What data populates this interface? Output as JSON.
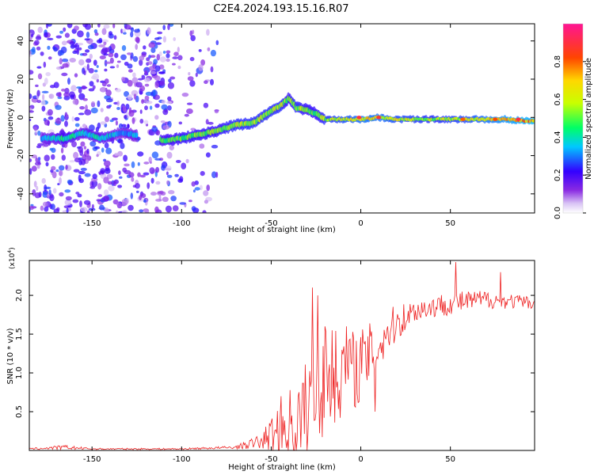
{
  "figure_title": "C2E4.2024.193.15.16.R07",
  "chart_data": [
    {
      "type": "heatmap",
      "name": "spectrogram",
      "title": "C2E4.2024.193.15.16.R07",
      "xlabel": "Height of straight line (km)",
      "ylabel": "Frequency (Hz)",
      "xlim": [
        -185,
        97
      ],
      "ylim": [
        -50,
        49
      ],
      "xticks": [
        -150,
        -100,
        -50,
        0,
        50
      ],
      "yticks": [
        -40,
        -20,
        0,
        20,
        40
      ],
      "colorbar": {
        "label": "Normalized spectral amplitude",
        "range": [
          0.0,
          1.0
        ],
        "ticks": [
          0.0,
          0.2,
          0.4,
          0.6,
          0.8
        ],
        "tick_labels": [
          "0.0",
          "0.2",
          "0.4",
          "0.6",
          "0.8"
        ],
        "colormap": [
          "#ffffff",
          "#d9c4f5",
          "#8a2be2",
          "#3300ff",
          "#00c8ff",
          "#00ff66",
          "#c8ff00",
          "#ffd700",
          "#ff4500",
          "#ff1493"
        ]
      },
      "ridge": [
        {
          "x": -173,
          "y": -11,
          "a": 0.35
        },
        {
          "x": -165,
          "y": -11,
          "a": 0.45
        },
        {
          "x": -155,
          "y": -8,
          "a": 0.35
        },
        {
          "x": -145,
          "y": -11,
          "a": 0.4
        },
        {
          "x": -133,
          "y": -8,
          "a": 0.3
        },
        {
          "x": -110,
          "y": -12,
          "a": 0.45
        },
        {
          "x": -100,
          "y": -11,
          "a": 0.5
        },
        {
          "x": -90,
          "y": -9,
          "a": 0.5
        },
        {
          "x": -80,
          "y": -7,
          "a": 0.5
        },
        {
          "x": -70,
          "y": -4,
          "a": 0.55
        },
        {
          "x": -60,
          "y": -3,
          "a": 0.55
        },
        {
          "x": -52,
          "y": 2,
          "a": 0.55
        },
        {
          "x": -45,
          "y": 6,
          "a": 0.55
        },
        {
          "x": -40,
          "y": 10,
          "a": 0.5
        },
        {
          "x": -36,
          "y": 5,
          "a": 0.55
        },
        {
          "x": -30,
          "y": 4,
          "a": 0.5
        },
        {
          "x": -25,
          "y": 2,
          "a": 0.5
        },
        {
          "x": -20,
          "y": -1,
          "a": 0.55
        },
        {
          "x": -10,
          "y": -1,
          "a": 0.6
        },
        {
          "x": 0,
          "y": -1,
          "a": 0.65
        },
        {
          "x": 10,
          "y": 0,
          "a": 0.65
        },
        {
          "x": 20,
          "y": -1,
          "a": 0.6
        },
        {
          "x": 40,
          "y": -1,
          "a": 0.55
        },
        {
          "x": 60,
          "y": -1,
          "a": 0.6
        },
        {
          "x": 80,
          "y": -1,
          "a": 0.7
        },
        {
          "x": 97,
          "y": -2,
          "a": 0.75
        }
      ],
      "hotspots": [
        {
          "x": -1,
          "y": 0,
          "a": 0.9
        },
        {
          "x": 10,
          "y": 0,
          "a": 0.88
        },
        {
          "x": 57,
          "y": -1,
          "a": 0.8
        },
        {
          "x": 75,
          "y": -1,
          "a": 0.82
        },
        {
          "x": 88,
          "y": -1,
          "a": 0.9
        }
      ],
      "noise_band": {
        "x_from": -185,
        "x_to": -80,
        "level": 0.25
      }
    },
    {
      "type": "line",
      "name": "snr",
      "xlabel": "Height of straight line (km)",
      "ylabel": "SNR (10 * v/v)",
      "ylabel_multiplier": "(x10",
      "ylabel_multiplier_exp": "4",
      "ylabel_multiplier_close": ")",
      "xlim": [
        -185,
        97
      ],
      "ylim": [
        0,
        2.45
      ],
      "xticks": [
        -150,
        -100,
        -50,
        0,
        50
      ],
      "yticks": [
        0.5,
        1.0,
        1.5,
        2.0
      ],
      "ytick_labels": [
        "0.5",
        "1.0",
        "1.5",
        "2.0"
      ],
      "color": "#ee2222",
      "envelope": [
        {
          "x": -185,
          "y": 0.02,
          "amp": 0.01
        },
        {
          "x": -165,
          "y": 0.04,
          "amp": 0.03
        },
        {
          "x": -150,
          "y": 0.02,
          "amp": 0.01
        },
        {
          "x": -100,
          "y": 0.02,
          "amp": 0.01
        },
        {
          "x": -70,
          "y": 0.04,
          "amp": 0.02
        },
        {
          "x": -55,
          "y": 0.12,
          "amp": 0.1
        },
        {
          "x": -45,
          "y": 0.3,
          "amp": 0.4
        },
        {
          "x": -35,
          "y": 0.35,
          "amp": 0.6
        },
        {
          "x": -28,
          "y": 0.6,
          "amp": 0.7
        },
        {
          "x": -20,
          "y": 0.9,
          "amp": 0.7
        },
        {
          "x": -10,
          "y": 1.0,
          "amp": 0.55
        },
        {
          "x": 0,
          "y": 1.1,
          "amp": 0.5
        },
        {
          "x": 10,
          "y": 1.35,
          "amp": 0.35
        },
        {
          "x": 20,
          "y": 1.65,
          "amp": 0.25
        },
        {
          "x": 30,
          "y": 1.8,
          "amp": 0.15
        },
        {
          "x": 50,
          "y": 1.9,
          "amp": 0.15
        },
        {
          "x": 70,
          "y": 1.95,
          "amp": 0.12
        },
        {
          "x": 97,
          "y": 1.9,
          "amp": 0.08
        }
      ],
      "spikes": [
        {
          "x": -27,
          "y": 2.1
        },
        {
          "x": -24,
          "y": 2.0
        },
        {
          "x": -20,
          "y": 1.6
        },
        {
          "x": -16,
          "y": 1.55
        },
        {
          "x": -8,
          "y": 1.6
        },
        {
          "x": 8,
          "y": 0.5
        },
        {
          "x": 15,
          "y": 1.6
        },
        {
          "x": 53,
          "y": 2.43
        },
        {
          "x": 53,
          "y": 1.27
        },
        {
          "x": 78,
          "y": 2.3
        },
        {
          "x": 78,
          "y": 1.4
        }
      ]
    }
  ]
}
